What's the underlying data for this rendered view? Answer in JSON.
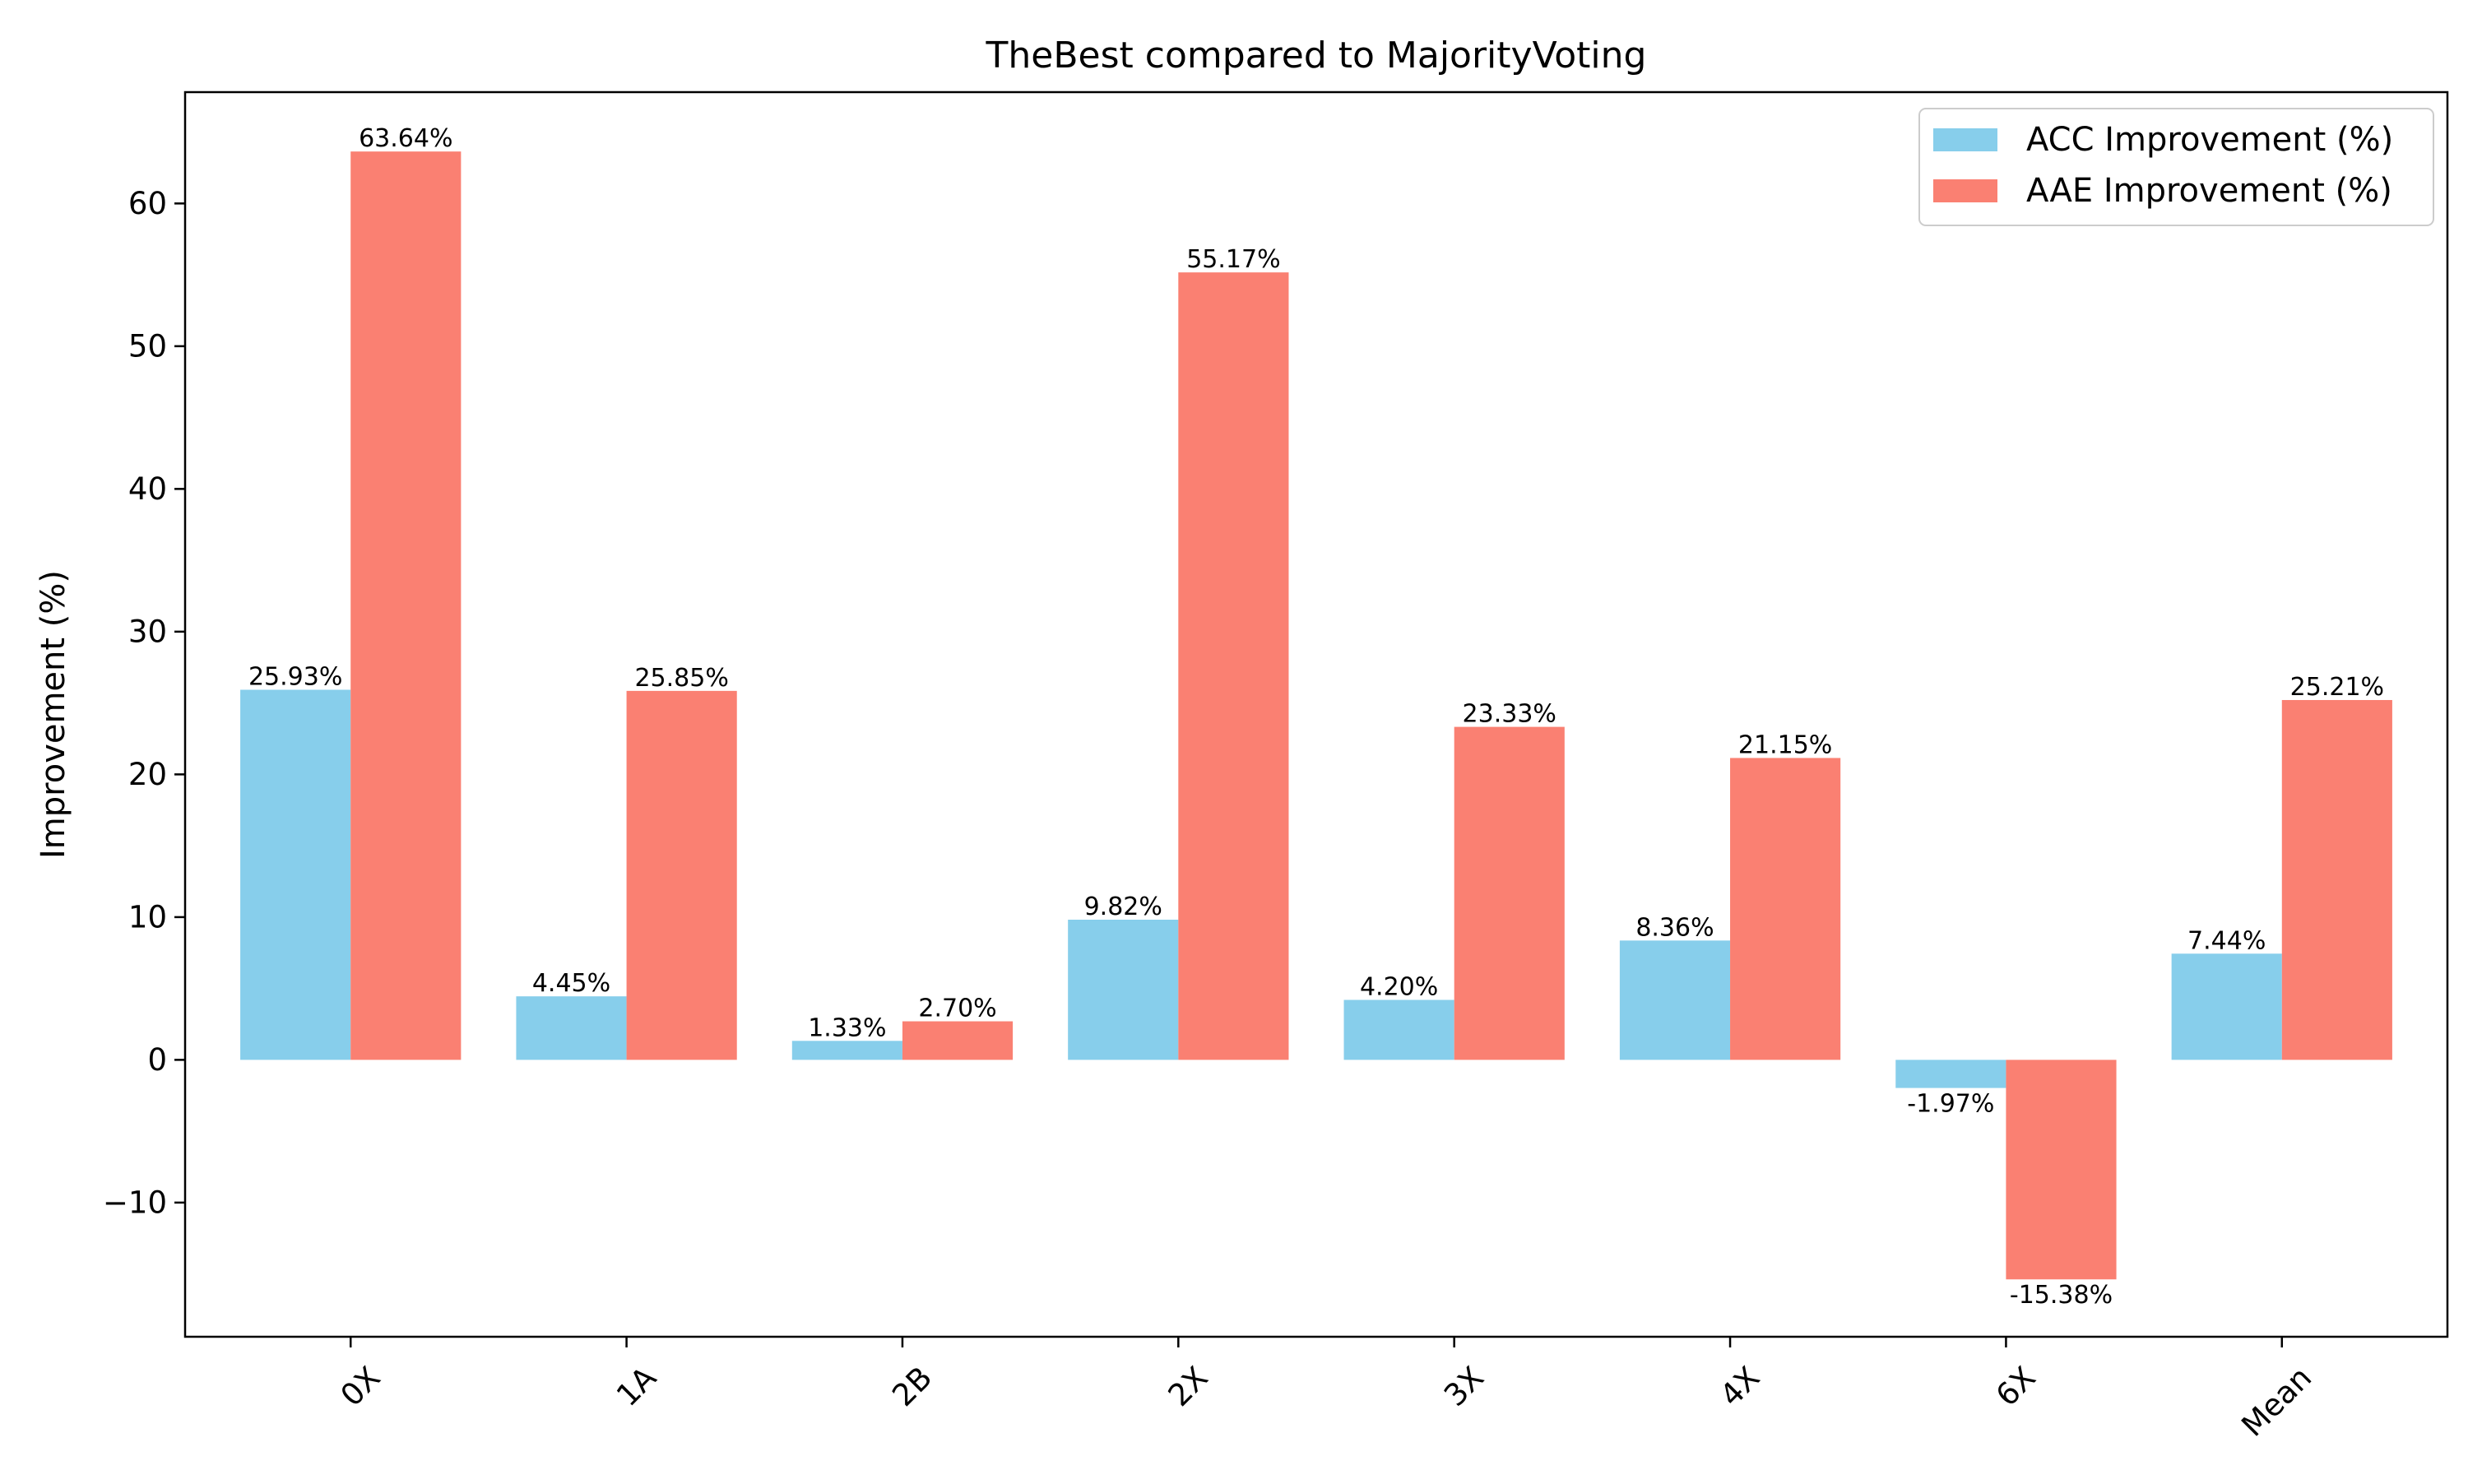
{
  "chart_data": {
    "type": "bar",
    "title": "TheBest compared to MajorityVoting",
    "xlabel": "",
    "ylabel": "Improvement (%)",
    "categories": [
      "0X",
      "1A",
      "2B",
      "2X",
      "3X",
      "4X",
      "6X",
      "Mean"
    ],
    "series": [
      {
        "name": "ACC Improvement (%)",
        "color": "#87CEEB",
        "values": [
          25.93,
          4.45,
          1.33,
          9.82,
          4.2,
          8.36,
          -1.97,
          7.44
        ],
        "labels": [
          "25.93%",
          "4.45%",
          "1.33%",
          "9.82%",
          "4.20%",
          "8.36%",
          "-1.97%",
          "7.44%"
        ]
      },
      {
        "name": "AAE Improvement (%)",
        "color": "#FA8072",
        "values": [
          63.64,
          25.85,
          2.7,
          55.17,
          23.33,
          21.15,
          -15.38,
          25.21
        ],
        "labels": [
          "63.64%",
          "25.85%",
          "2.70%",
          "55.17%",
          "23.33%",
          "21.15%",
          "-15.38%",
          "25.21%"
        ]
      }
    ],
    "ylim": [
      -19.4,
      67.8
    ],
    "yticks": [
      -10,
      0,
      10,
      20,
      30,
      40,
      50,
      60
    ],
    "ytick_labels": [
      "−10",
      "0",
      "10",
      "20",
      "30",
      "40",
      "50",
      "60"
    ],
    "grid": false,
    "legend_position": "top-right",
    "xtick_rotation": -45
  }
}
